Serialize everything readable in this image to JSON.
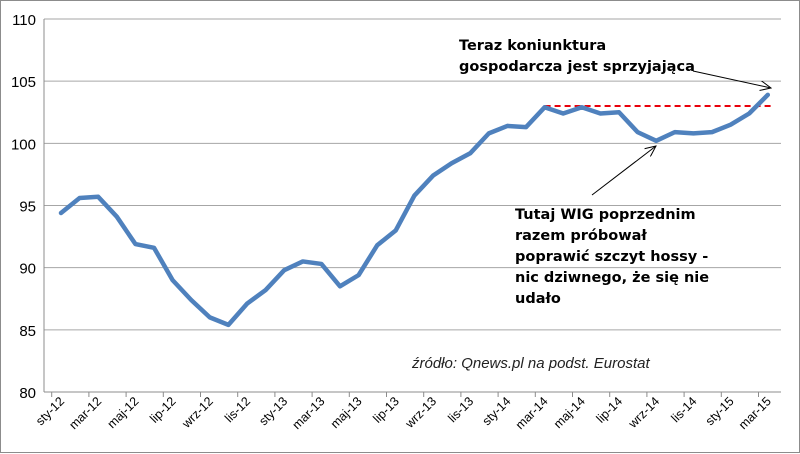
{
  "chart_data": {
    "type": "line",
    "title": "",
    "xlabel": "",
    "ylabel": "",
    "ylim": [
      80,
      110
    ],
    "yticks": [
      80,
      85,
      90,
      95,
      100,
      105,
      110
    ],
    "grid": true,
    "x": [
      "sty-12",
      "lut-12",
      "mar-12",
      "kwi-12",
      "maj-12",
      "cze-12",
      "lip-12",
      "sie-12",
      "wrz-12",
      "paź-12",
      "lis-12",
      "gru-12",
      "sty-13",
      "lut-13",
      "mar-13",
      "kwi-13",
      "maj-13",
      "cze-13",
      "lip-13",
      "sie-13",
      "wrz-13",
      "paź-13",
      "lis-13",
      "gru-13",
      "sty-14",
      "lut-14",
      "mar-14",
      "kwi-14",
      "maj-14",
      "cze-14",
      "lip-14",
      "sie-14",
      "wrz-14",
      "paź-14",
      "lis-14",
      "gru-14",
      "sty-15",
      "lut-15",
      "mar-15"
    ],
    "xtick_labels": [
      "sty-12",
      "mar-12",
      "maj-12",
      "lip-12",
      "wrz-12",
      "lis-12",
      "sty-13",
      "mar-13",
      "maj-13",
      "lip-13",
      "wrz-13",
      "lis-13",
      "sty-14",
      "mar-14",
      "maj-14",
      "lip-14",
      "wrz-14",
      "lis-14",
      "sty-15",
      "mar-15"
    ],
    "series": [
      {
        "name": "indeks",
        "color": "#4f81bd",
        "values": [
          94.4,
          95.6,
          95.7,
          94.1,
          91.9,
          91.6,
          89.0,
          87.4,
          86.0,
          85.4,
          87.1,
          88.2,
          89.8,
          90.5,
          90.3,
          88.5,
          89.4,
          91.8,
          93.0,
          95.8,
          97.4,
          98.4,
          99.2,
          100.8,
          101.4,
          101.3,
          102.9,
          102.4,
          102.9,
          102.4,
          102.5,
          100.9,
          100.2,
          100.9,
          100.8,
          100.9,
          101.5,
          102.4,
          103.9
        ]
      }
    ],
    "reference_line": {
      "value": 103.0,
      "from": "mar-14",
      "to": "mar-15",
      "color": "#e8000b",
      "style": "dashed"
    },
    "annotations": [
      {
        "text_lines": [
          "Teraz koniunktura",
          "gospodarcza jest sprzyjająca"
        ],
        "points_to": "mar-15"
      },
      {
        "text_lines": [
          "Tutaj WIG poprzednim",
          "razem próbował",
          "poprawić szczyt hossy -",
          "nic dziwnego, że się nie",
          "udało"
        ],
        "points_to": "wrz-14"
      }
    ],
    "source": "źródło: Qnews.pl na podst. Eurostat"
  }
}
